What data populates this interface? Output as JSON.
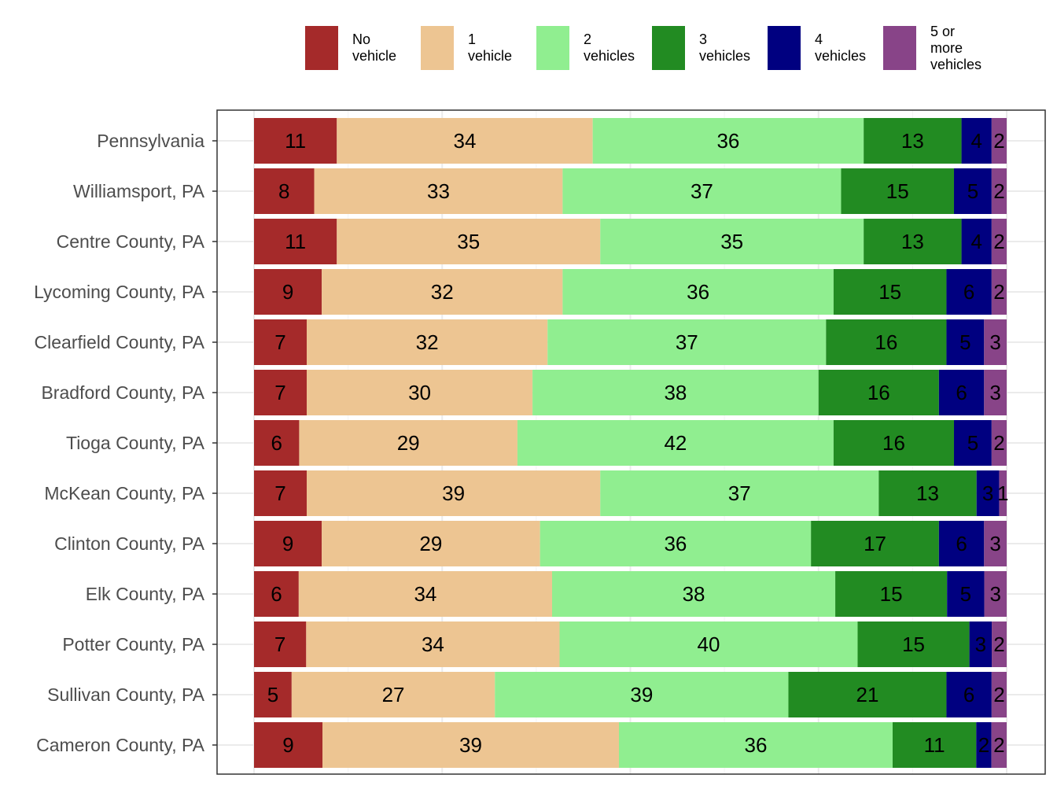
{
  "chart_data": {
    "type": "bar",
    "orientation": "horizontal",
    "stacked": true,
    "normalized": true,
    "title": "",
    "xlabel": "",
    "ylabel": "",
    "xlim": [
      0,
      100
    ],
    "grid": true,
    "legend_position": "top",
    "categories": [
      "Pennsylvania",
      "Williamsport, PA",
      "Centre County, PA",
      "Lycoming County, PA",
      "Clearfield County, PA",
      "Bradford County, PA",
      "Tioga County, PA",
      "McKean County, PA",
      "Clinton County, PA",
      "Elk County, PA",
      "Potter County, PA",
      "Sullivan County, PA",
      "Cameron County, PA"
    ],
    "series": [
      {
        "name": "No vehicle",
        "legend_label": "No\nvehicle",
        "color": "#a52a2a",
        "values": [
          11,
          8,
          11,
          9,
          7,
          7,
          6,
          7,
          9,
          6,
          7,
          5,
          9
        ]
      },
      {
        "name": "1 vehicle",
        "legend_label": "1\nvehicle",
        "color": "#edc592",
        "values": [
          34,
          33,
          35,
          32,
          32,
          30,
          29,
          39,
          29,
          34,
          34,
          27,
          39
        ]
      },
      {
        "name": "2 vehicles",
        "legend_label": "2\nvehicles",
        "color": "#90ee90",
        "values": [
          36,
          37,
          35,
          36,
          37,
          38,
          42,
          37,
          36,
          38,
          40,
          39,
          36
        ]
      },
      {
        "name": "3 vehicles",
        "legend_label": "3\nvehicles",
        "color": "#228b22",
        "values": [
          13,
          15,
          13,
          15,
          16,
          16,
          16,
          13,
          17,
          15,
          15,
          21,
          11
        ]
      },
      {
        "name": "4 vehicles",
        "legend_label": "4\nvehicles",
        "color": "#000080",
        "values": [
          4,
          5,
          4,
          6,
          5,
          6,
          5,
          3,
          6,
          5,
          3,
          6,
          2
        ]
      },
      {
        "name": "5 or more vehicles",
        "legend_label": "5 or\nmore\nvehicles",
        "color": "#884488",
        "values": [
          2,
          2,
          2,
          2,
          3,
          3,
          2,
          1,
          3,
          3,
          2,
          2,
          2
        ]
      }
    ]
  }
}
